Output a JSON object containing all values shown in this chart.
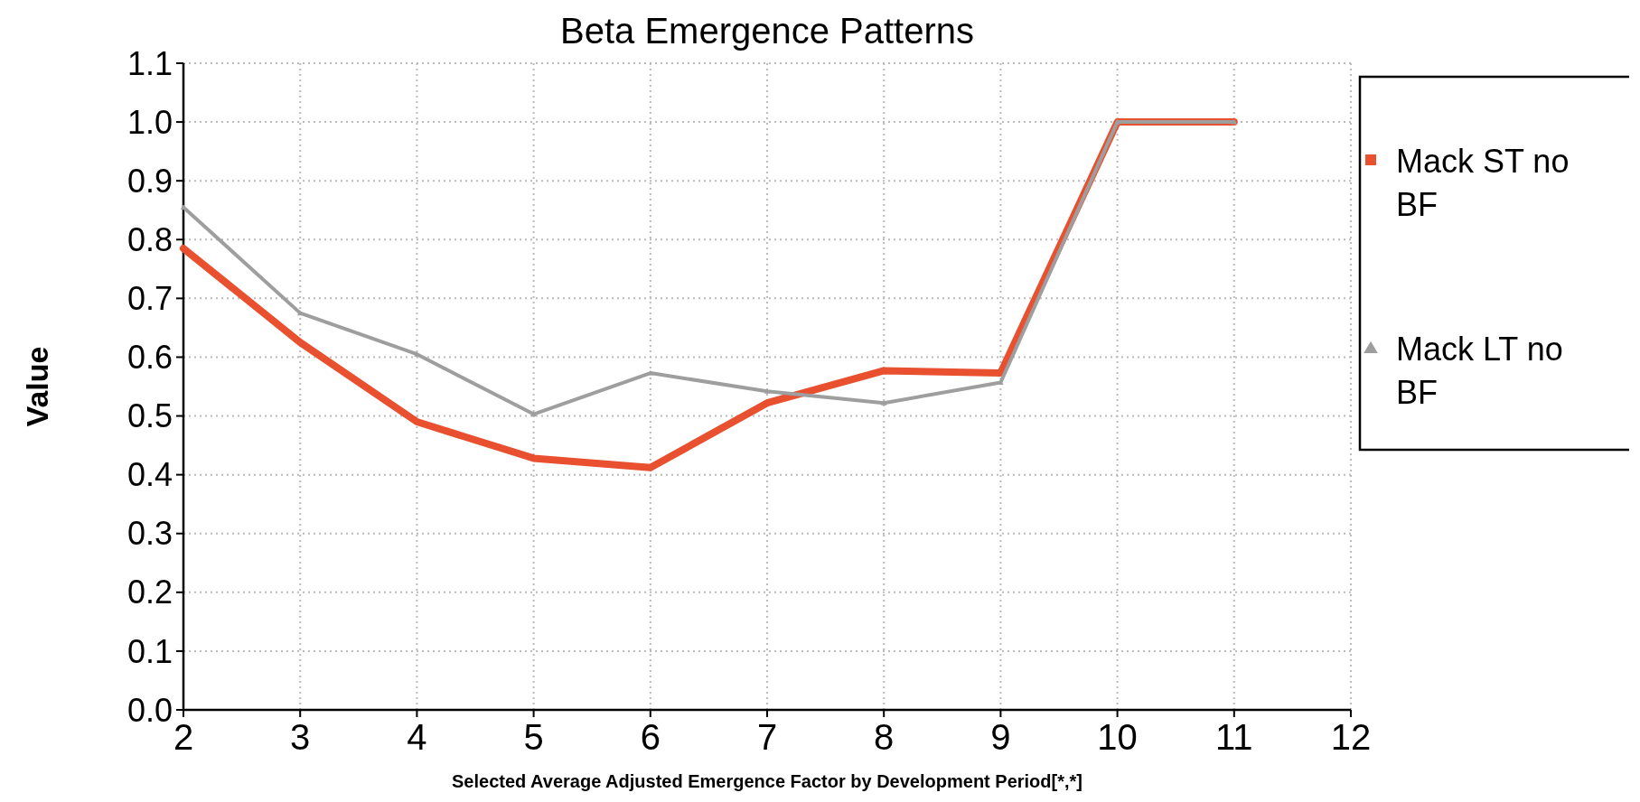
{
  "chart_data": {
    "type": "line",
    "title": "Beta Emergence Patterns",
    "xlabel": "Selected Average Adjusted Emergence Factor by Development Period[*,*]",
    "ylabel": "Value",
    "x": [
      2,
      3,
      4,
      5,
      6,
      7,
      8,
      9,
      10,
      11
    ],
    "series": [
      {
        "name": "Mack ST no BF",
        "color": "#e8502f",
        "marker": "square",
        "values": [
          0.785,
          0.625,
          0.49,
          0.428,
          0.412,
          0.522,
          0.577,
          0.573,
          1.0,
          1.0
        ]
      },
      {
        "name": "Mack LT no BF",
        "color": "#9e9e9e",
        "marker": "triangle",
        "values": [
          0.855,
          0.675,
          0.605,
          0.503,
          0.573,
          0.542,
          0.522,
          0.557,
          1.0,
          1.0
        ]
      }
    ],
    "xlim": [
      2,
      12
    ],
    "xticks": [
      2,
      3,
      4,
      5,
      6,
      7,
      8,
      9,
      10,
      11,
      12
    ],
    "ylim": [
      0,
      1.1
    ],
    "yticks": [
      {
        "value": 0,
        "label": "0.0"
      },
      0.1,
      0.2,
      0.3,
      0.4,
      0.5,
      0.6,
      0.7,
      0.8,
      0.9,
      {
        "value": 1,
        "label": "1.0"
      },
      1.1
    ],
    "grid": true,
    "legend": "right",
    "line_style": "solid"
  }
}
